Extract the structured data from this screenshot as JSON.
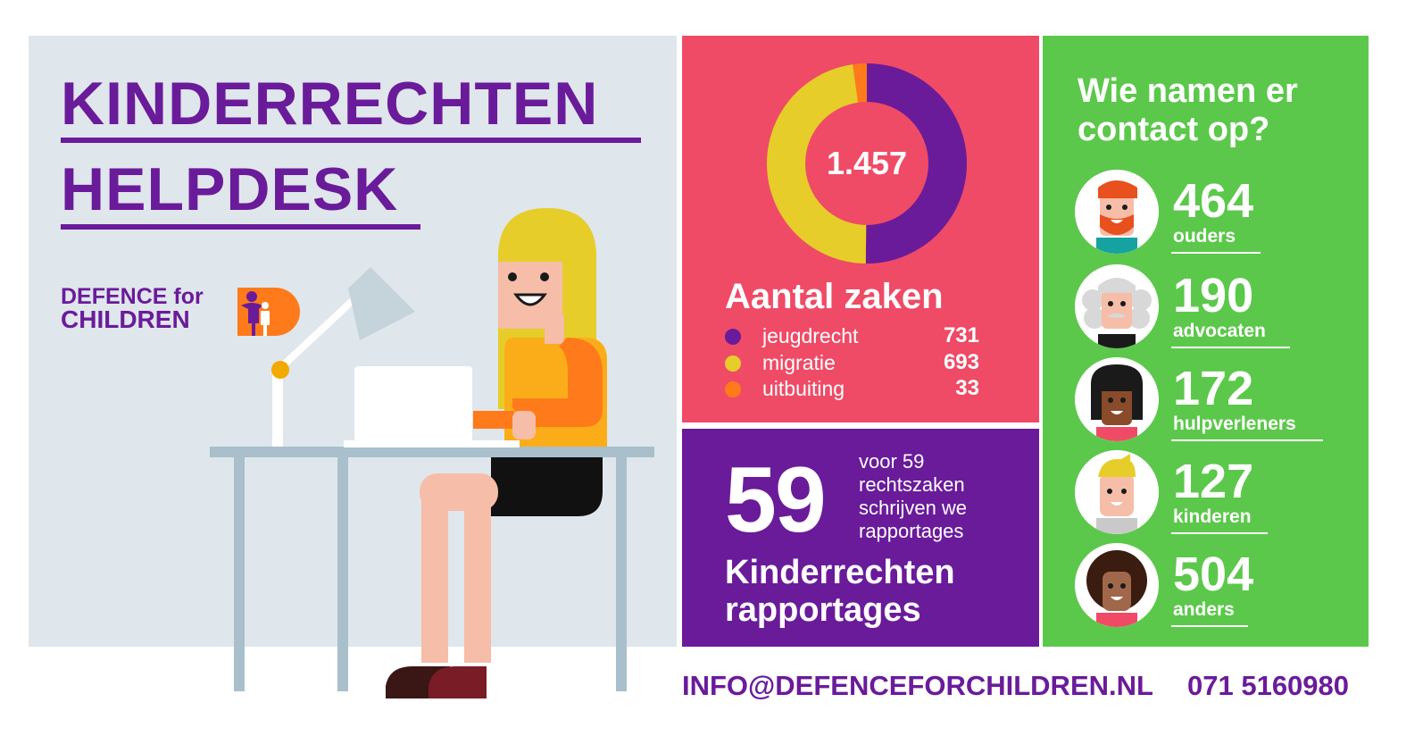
{
  "header": {
    "title_line_1": "KINDERRECHTEN",
    "title_line_2": "HELPDESK"
  },
  "logo": {
    "line_1": "DEFENCE for",
    "line_2": "CHILDREN"
  },
  "chart_data": {
    "type": "pie",
    "title": "Aantal zaken",
    "center_label": "1.457",
    "categories": [
      "jeugdrecht",
      "migratie",
      "uitbuiting"
    ],
    "values": [
      731,
      693,
      33
    ],
    "colors": [
      "#6a1b9a",
      "#e6cd2a",
      "#ff7a1a"
    ],
    "legend_placement": "bottom"
  },
  "reports": {
    "count": "59",
    "description_lines": [
      "voor 59",
      "rechtszaken",
      "schrijven we",
      "rapportages"
    ],
    "title_line_1": "Kinderrechten",
    "title_line_2": "rapportages"
  },
  "contacts": {
    "title_line_1": "Wie namen er",
    "title_line_2": "contact op?",
    "items": [
      {
        "value": "464",
        "label": "ouders",
        "icon": "bearded-man-icon"
      },
      {
        "value": "190",
        "label": "advocaten",
        "icon": "judge-wig-icon"
      },
      {
        "value": "172",
        "label": "hulpverleners",
        "icon": "woman-dark-hair-icon"
      },
      {
        "value": "127",
        "label": "kinderen",
        "icon": "blond-child-icon"
      },
      {
        "value": "504",
        "label": "anders",
        "icon": "curly-hair-person-icon"
      }
    ]
  },
  "footer": {
    "email": "INFO@DEFENCEFORCHILDREN.NL",
    "phone": "071 5160980"
  },
  "colors": {
    "purple": "#6a1b9a",
    "pink": "#ef4b66",
    "green": "#5cc84b",
    "background_panel": "#dfe6ec"
  }
}
